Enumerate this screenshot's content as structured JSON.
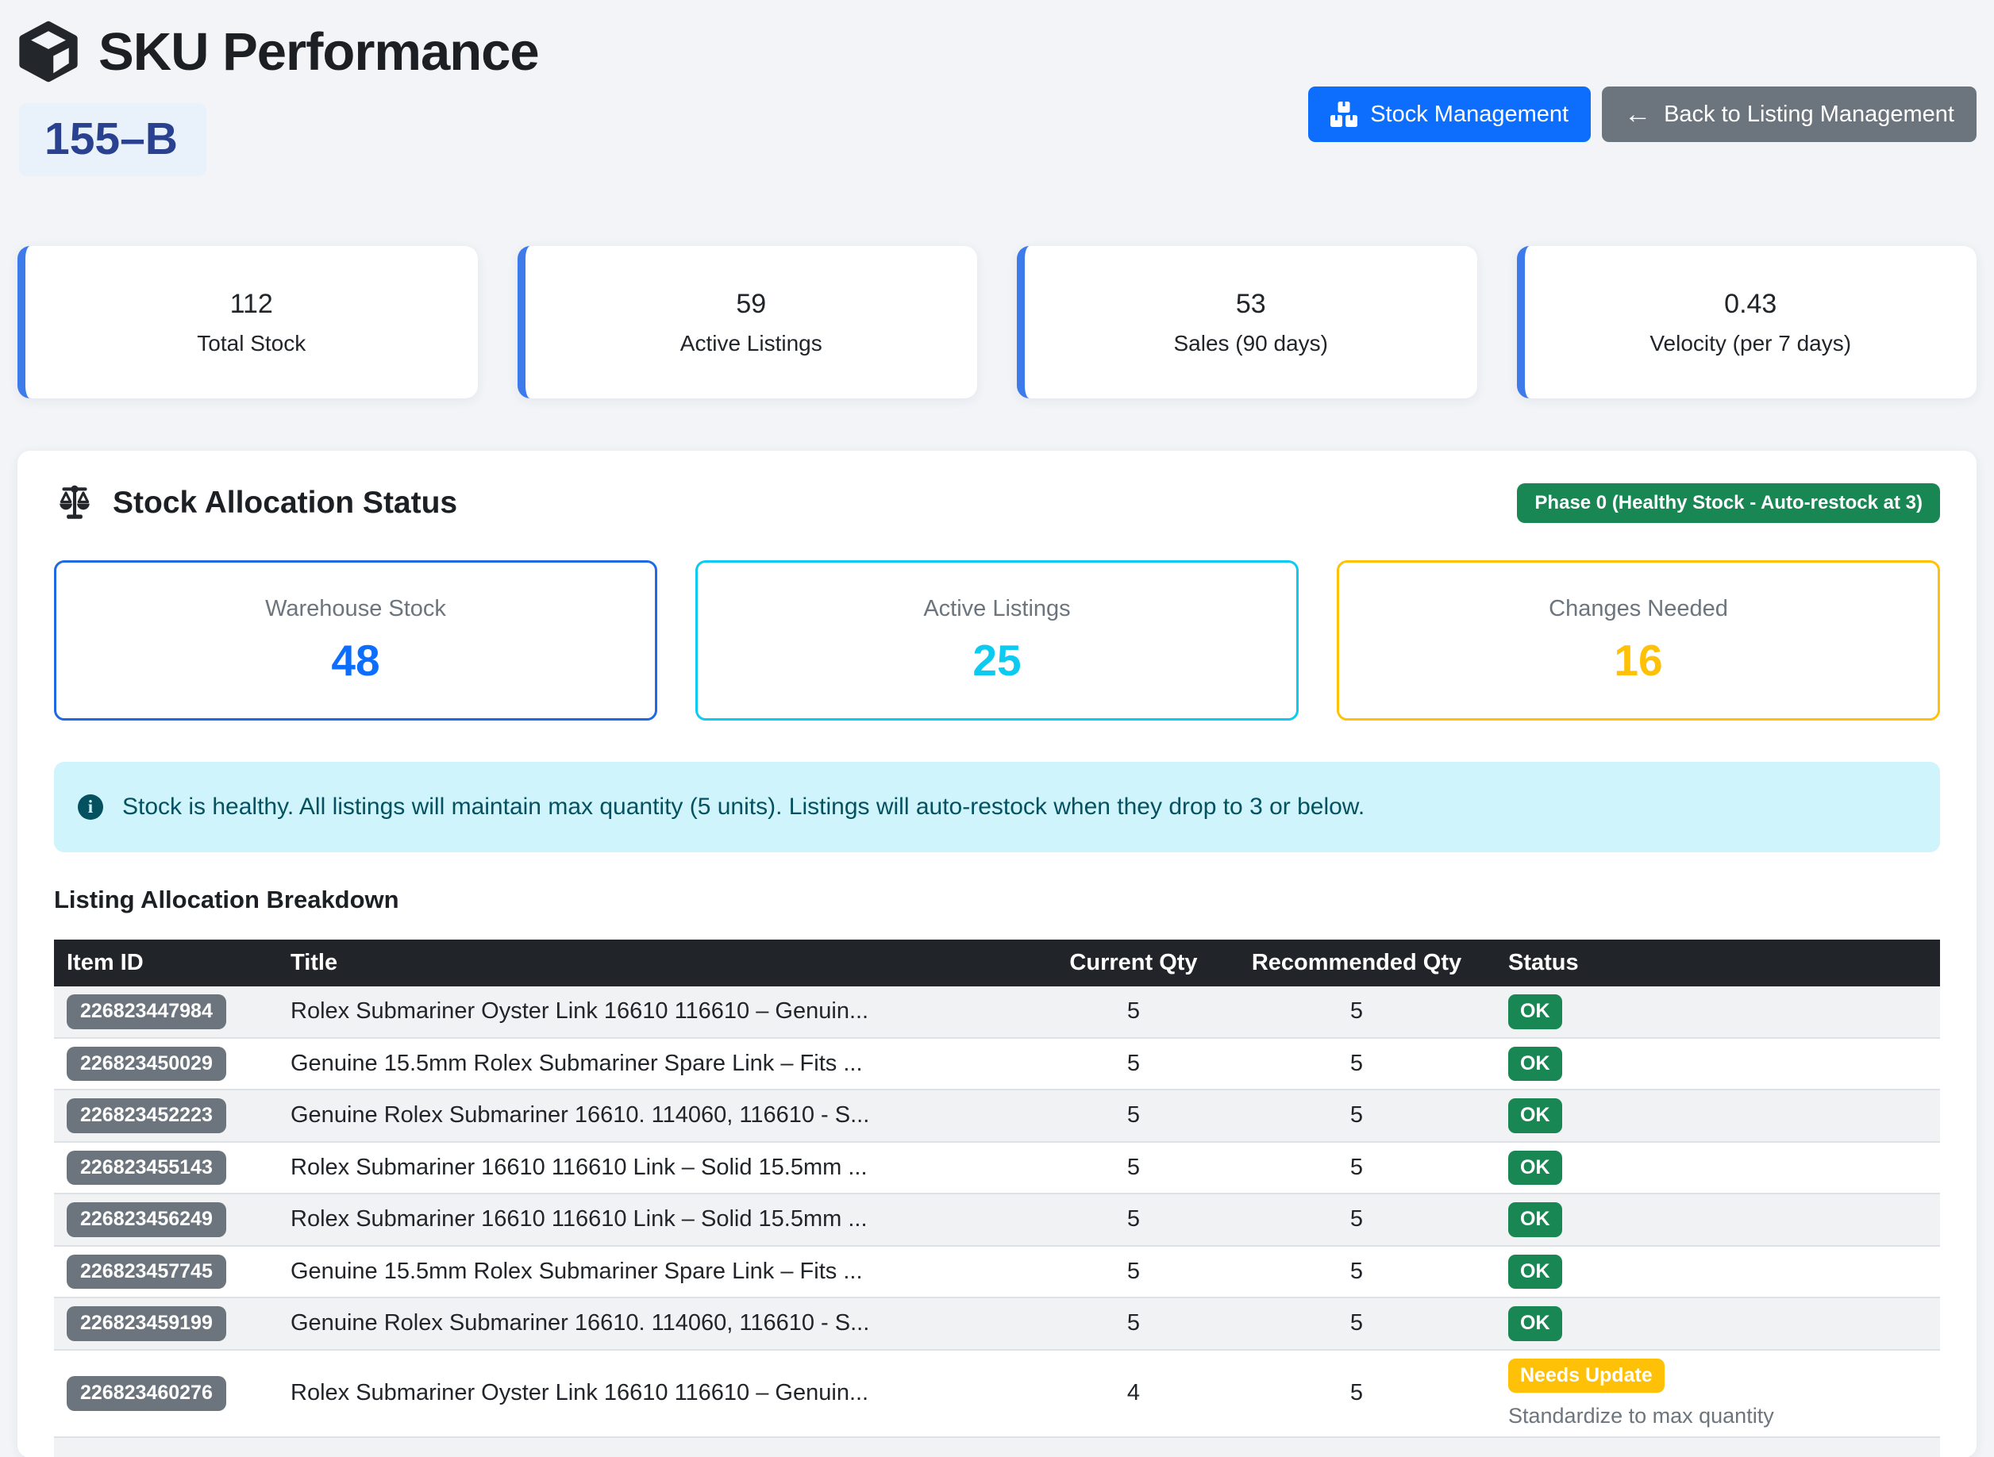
{
  "header": {
    "title": "SKU Performance",
    "sku_badge": "155–B",
    "stock_management_label": "Stock Management",
    "back_label": "Back to Listing Management"
  },
  "stats": [
    {
      "value": "112",
      "label": "Total Stock"
    },
    {
      "value": "59",
      "label": "Active Listings"
    },
    {
      "value": "53",
      "label": "Sales (90 days)"
    },
    {
      "value": "0.43",
      "label": "Velocity (per 7 days)"
    }
  ],
  "allocation": {
    "section_title": "Stock Allocation Status",
    "phase_badge": "Phase 0 (Healthy Stock - Auto-restock at 3)",
    "boxes": [
      {
        "label": "Warehouse Stock",
        "value": "48"
      },
      {
        "label": "Active Listings",
        "value": "25"
      },
      {
        "label": "Changes Needed",
        "value": "16"
      }
    ],
    "info_message": "Stock is healthy. All listings will maintain max quantity (5 units). Listings will auto-restock when they drop to 3 or below.",
    "breakdown_title": "Listing Allocation Breakdown"
  },
  "table": {
    "columns": [
      "Item ID",
      "Title",
      "Current Qty",
      "Recommended Qty",
      "Status"
    ],
    "rows": [
      {
        "id": "226823447984",
        "title": "Rolex Submariner Oyster Link 16610 116610 – Genuin...",
        "current": "5",
        "recommended": "5",
        "status": "OK",
        "note": ""
      },
      {
        "id": "226823450029",
        "title": "Genuine 15.5mm Rolex Submariner Spare Link – Fits ...",
        "current": "5",
        "recommended": "5",
        "status": "OK",
        "note": ""
      },
      {
        "id": "226823452223",
        "title": "Genuine Rolex Submariner 16610. 114060, 116610 - S...",
        "current": "5",
        "recommended": "5",
        "status": "OK",
        "note": ""
      },
      {
        "id": "226823455143",
        "title": "Rolex Submariner 16610 116610 Link – Solid 15.5mm ...",
        "current": "5",
        "recommended": "5",
        "status": "OK",
        "note": ""
      },
      {
        "id": "226823456249",
        "title": "Rolex Submariner 16610 116610 Link – Solid 15.5mm ...",
        "current": "5",
        "recommended": "5",
        "status": "OK",
        "note": ""
      },
      {
        "id": "226823457745",
        "title": "Genuine 15.5mm Rolex Submariner Spare Link – Fits ...",
        "current": "5",
        "recommended": "5",
        "status": "OK",
        "note": ""
      },
      {
        "id": "226823459199",
        "title": "Genuine Rolex Submariner 16610. 114060, 116610 - S...",
        "current": "5",
        "recommended": "5",
        "status": "OK",
        "note": ""
      },
      {
        "id": "226823460276",
        "title": "Rolex Submariner Oyster Link 16610 116610 – Genuin...",
        "current": "4",
        "recommended": "5",
        "status": "Needs Update",
        "note": "Standardize to max quantity"
      }
    ]
  },
  "colors": {
    "primary": "#0d6efd",
    "secondary": "#6c757d",
    "success": "#198754",
    "info_cyan": "#0dcaf0",
    "warning": "#ffc107",
    "alert_bg": "#cff4fc",
    "alert_text": "#055160",
    "table_header_bg": "#212529",
    "sku_text": "#2a418f",
    "sku_bg": "#e9f1fa"
  }
}
